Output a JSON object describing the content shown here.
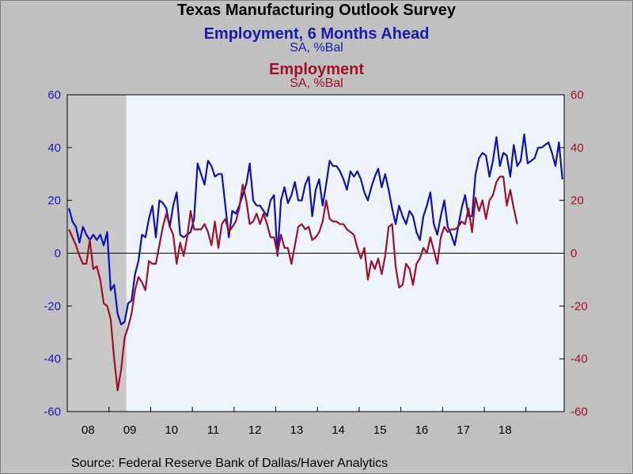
{
  "title": "Texas Manufacturing Outlook Survey",
  "source": "Source:  Federal Reserve Bank of Dallas/Haver Analytics",
  "chart_data": {
    "type": "line",
    "title": "Texas Manufacturing Outlook Survey",
    "x_unit": "month index (0 = Jan 2008)",
    "x_tick_labels": [
      "08",
      "09",
      "10",
      "11",
      "12",
      "13",
      "14",
      "15",
      "16",
      "17",
      "18"
    ],
    "y_left": {
      "ylim": [
        -60,
        60
      ],
      "ticks": [
        60,
        40,
        20,
        0,
        -20,
        -40,
        -60
      ]
    },
    "y_right": {
      "ylim": [
        -60,
        60
      ],
      "ticks": [
        60,
        40,
        20,
        0,
        -20,
        -40,
        -60
      ]
    },
    "recession_shading": {
      "start_month": 0,
      "end_month": 17
    },
    "grid": false,
    "series": [
      {
        "name": "Employment, 6 Months Ahead",
        "unit": "SA, %Bal",
        "axis": "left",
        "color": "#1010b8",
        "values": [
          17,
          12,
          10,
          4,
          10,
          7,
          5,
          7,
          5,
          7,
          3,
          8,
          -14,
          -12,
          -23,
          -27,
          -26,
          -19,
          -18,
          -8,
          -3,
          7,
          6,
          13,
          18,
          6,
          20,
          19,
          17,
          10,
          18,
          23,
          7,
          6,
          7,
          8,
          13,
          34,
          30,
          26,
          35,
          33,
          29,
          30,
          30,
          18,
          6,
          16,
          15,
          18,
          22,
          26,
          34,
          20,
          18,
          18,
          16,
          14,
          20,
          22,
          -1,
          20,
          25,
          19,
          22,
          27,
          20,
          20,
          26,
          29,
          14,
          24,
          28,
          18,
          26,
          35,
          33,
          33,
          31,
          28,
          24,
          31,
          29,
          31,
          28,
          23,
          20,
          25,
          29,
          32,
          25,
          30,
          24,
          17,
          11,
          18,
          14,
          11,
          16,
          14,
          8,
          5,
          14,
          18,
          23,
          11,
          7,
          14,
          20,
          10,
          7,
          3,
          10,
          17,
          22,
          14,
          14,
          30,
          36,
          38,
          37,
          29,
          35,
          44,
          33,
          38,
          37,
          29,
          41,
          33,
          35,
          45,
          34,
          35,
          36,
          40,
          40,
          41,
          42,
          38,
          33,
          42,
          28
        ],
        "missing_note": "series sampled monthly"
      },
      {
        "name": "Employment",
        "unit": "SA, %Bal",
        "axis": "right",
        "color": "#a0102a",
        "values": [
          9,
          6,
          3,
          -1,
          -4,
          -4,
          5,
          -6,
          -5,
          -10,
          -19,
          -20,
          -25,
          -40,
          -52,
          -44,
          -32,
          -28,
          -23,
          -14,
          -9,
          -11,
          -14,
          -3,
          -4,
          -4,
          3,
          10,
          15,
          10,
          7,
          -4,
          4,
          -1,
          6,
          16,
          9,
          9,
          9,
          11,
          8,
          3,
          12,
          2,
          11,
          13,
          8,
          10,
          12,
          17,
          26,
          20,
          11,
          12,
          15,
          11,
          15,
          11,
          6,
          6,
          0,
          7,
          2,
          2,
          -4,
          3,
          10,
          11,
          9,
          10,
          5,
          6,
          8,
          12,
          20,
          13,
          12,
          12,
          11,
          11,
          9,
          8,
          7,
          2,
          -2,
          2,
          -10,
          -3,
          -6,
          -2,
          -8,
          -1,
          10,
          11,
          -5,
          -13,
          -12,
          -4,
          -6,
          -12,
          -4,
          -2,
          2,
          0,
          6,
          1,
          -4,
          6,
          10,
          8,
          9,
          9,
          10,
          12,
          11,
          17,
          8,
          21,
          16,
          20,
          13,
          20,
          22,
          27,
          29,
          29,
          18,
          24,
          17,
          11
        ]
      }
    ]
  }
}
